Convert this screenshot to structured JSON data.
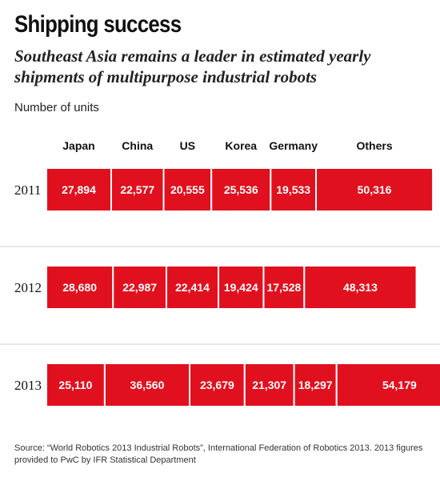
{
  "title": "Shipping success",
  "subtitle": "Southeast Asia remains a leader in estimated yearly shipments of multipurpose industrial robots",
  "unit_label": "Number of units",
  "footnote": "Source: “World Robotics 2013 Industrial Robots”, International Federation of Robotics 2013. 2013 figures provided to PwC by IFR Statistical Department",
  "colors": {
    "bar": "#e1101e",
    "separator": "#ffffff",
    "divider": "#cfcfcf"
  },
  "chart_data": {
    "type": "bar",
    "orientation": "horizontal",
    "stacked": true,
    "title": "Shipping success",
    "subtitle": "Southeast Asia remains a leader in estimated yearly shipments of multipurpose industrial robots",
    "ylabel": "Number of units",
    "categories": [
      "2011",
      "2012",
      "2013"
    ],
    "series": [
      {
        "name": "Japan",
        "values": [
          27894,
          28680,
          25110
        ]
      },
      {
        "name": "China",
        "values": [
          22577,
          22987,
          36560
        ]
      },
      {
        "name": "US",
        "values": [
          20555,
          22414,
          23679
        ]
      },
      {
        "name": "Korea",
        "values": [
          25536,
          19424,
          21307
        ]
      },
      {
        "name": "Germany",
        "values": [
          19533,
          17528,
          18297
        ]
      },
      {
        "name": "Others",
        "values": [
          50316,
          48313,
          54179
        ]
      }
    ],
    "value_labels": [
      [
        "27,894",
        "22,577",
        "20,555",
        "25,536",
        "19,533",
        "50,316"
      ],
      [
        "28,680",
        "22,987",
        "22,414",
        "19,424",
        "17,528",
        "48,313"
      ],
      [
        "25,110",
        "36,560",
        "23,679",
        "21,307",
        "18,297",
        "54,179"
      ]
    ],
    "legend": "top",
    "grid": false
  }
}
